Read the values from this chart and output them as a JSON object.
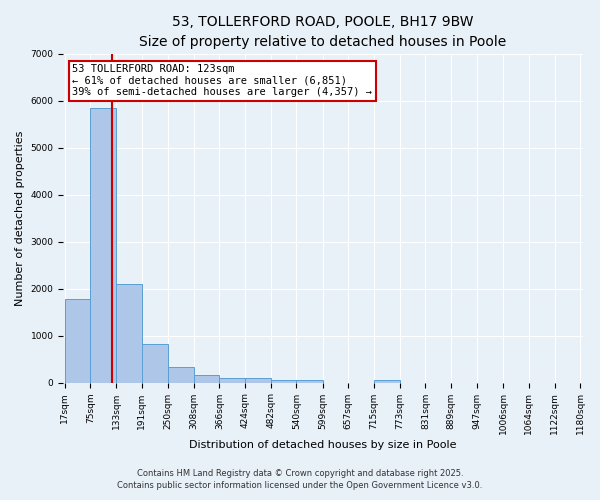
{
  "title_line1": "53, TOLLERFORD ROAD, POOLE, BH17 9BW",
  "title_line2": "Size of property relative to detached houses in Poole",
  "xlabel": "Distribution of detached houses by size in Poole",
  "ylabel": "Number of detached properties",
  "bar_edges": [
    17,
    75,
    133,
    191,
    250,
    308,
    366,
    424,
    482,
    540,
    599,
    657,
    715,
    773,
    831,
    889,
    947,
    1006,
    1064,
    1122,
    1180
  ],
  "bar_heights": [
    1780,
    5850,
    2100,
    830,
    330,
    170,
    90,
    90,
    60,
    60,
    0,
    0,
    60,
    0,
    0,
    0,
    0,
    0,
    0,
    0
  ],
  "bar_color": "#aec6e8",
  "bar_edgecolor": "#5a9fd4",
  "background_color": "#e8f0f8",
  "grid_color": "#ffffff",
  "red_line_x": 123,
  "red_line_color": "#cc0000",
  "annotation_text": "53 TOLLERFORD ROAD: 123sqm\n← 61% of detached houses are smaller (6,851)\n39% of semi-detached houses are larger (4,357) →",
  "annotation_box_color": "#ffffff",
  "annotation_box_edgecolor": "#cc0000",
  "ylim": [
    0,
    7000
  ],
  "yticks": [
    0,
    1000,
    2000,
    3000,
    4000,
    5000,
    6000,
    7000
  ],
  "tick_labels": [
    "17sqm",
    "75sqm",
    "133sqm",
    "191sqm",
    "250sqm",
    "308sqm",
    "366sqm",
    "424sqm",
    "482sqm",
    "540sqm",
    "599sqm",
    "657sqm",
    "715sqm",
    "773sqm",
    "831sqm",
    "889sqm",
    "947sqm",
    "1006sqm",
    "1064sqm",
    "1122sqm",
    "1180sqm"
  ],
  "footnote1": "Contains HM Land Registry data © Crown copyright and database right 2025.",
  "footnote2": "Contains public sector information licensed under the Open Government Licence v3.0.",
  "title_fontsize": 10,
  "subtitle_fontsize": 9,
  "axis_label_fontsize": 8,
  "tick_fontsize": 6.5,
  "annotation_fontsize": 7.5,
  "footnote_fontsize": 6
}
